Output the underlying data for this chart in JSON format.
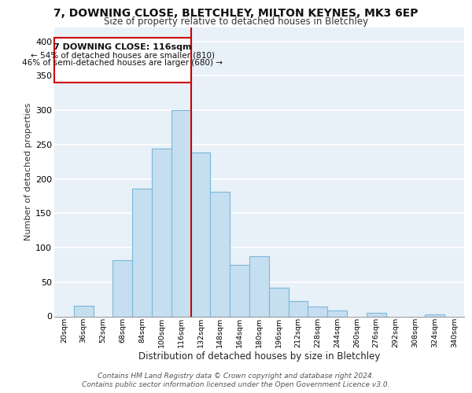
{
  "title": "7, DOWNING CLOSE, BLETCHLEY, MILTON KEYNES, MK3 6EP",
  "subtitle": "Size of property relative to detached houses in Bletchley",
  "xlabel": "Distribution of detached houses by size in Bletchley",
  "ylabel": "Number of detached properties",
  "bin_labels": [
    "20sqm",
    "36sqm",
    "52sqm",
    "68sqm",
    "84sqm",
    "100sqm",
    "116sqm",
    "132sqm",
    "148sqm",
    "164sqm",
    "180sqm",
    "196sqm",
    "212sqm",
    "228sqm",
    "244sqm",
    "260sqm",
    "276sqm",
    "292sqm",
    "308sqm",
    "324sqm",
    "340sqm"
  ],
  "bar_values": [
    0,
    15,
    0,
    82,
    186,
    244,
    300,
    238,
    181,
    75,
    88,
    42,
    22,
    14,
    9,
    0,
    5,
    0,
    0,
    3,
    0
  ],
  "bar_color": "#c6dff0",
  "bar_edge_color": "#7ab8d9",
  "highlight_bin_index": 6,
  "highlight_line_color": "#cc0000",
  "annotation_title": "7 DOWNING CLOSE: 116sqm",
  "annotation_line1": "← 54% of detached houses are smaller (810)",
  "annotation_line2": "46% of semi-detached houses are larger (680) →",
  "annotation_box_facecolor": "#ffffff",
  "annotation_box_edgecolor": "#cc0000",
  "ylim": [
    0,
    420
  ],
  "yticks": [
    0,
    50,
    100,
    150,
    200,
    250,
    300,
    350,
    400
  ],
  "background_color": "#e8f0f8",
  "title_fontsize": 10,
  "subtitle_fontsize": 8.5,
  "ylabel_fontsize": 8,
  "xlabel_fontsize": 8.5,
  "ytick_fontsize": 8,
  "xtick_fontsize": 6.8,
  "footer_line1": "Contains HM Land Registry data © Crown copyright and database right 2024.",
  "footer_line2": "Contains public sector information licensed under the Open Government Licence v3.0.",
  "footer_fontsize": 6.5
}
